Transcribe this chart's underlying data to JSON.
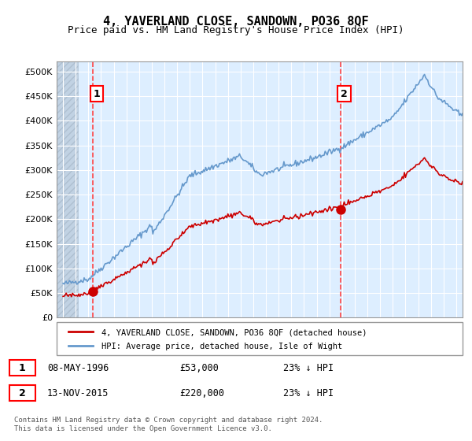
{
  "title": "4, YAVERLAND CLOSE, SANDOWN, PO36 8QF",
  "subtitle": "Price paid vs. HM Land Registry's House Price Index (HPI)",
  "sale1_date": 1996.36,
  "sale1_price": 53000,
  "sale2_date": 2015.87,
  "sale2_price": 220000,
  "hpi_color": "#6699cc",
  "price_color": "#cc0000",
  "dashed_color": "#ff4444",
  "bg_plot": "#ddeeff",
  "bg_hatch": "#ccddee",
  "ylim": [
    0,
    520000
  ],
  "xlim_left": 1993.5,
  "xlim_right": 2025.5,
  "legend_line1": "4, YAVERLAND CLOSE, SANDOWN, PO36 8QF (detached house)",
  "legend_line2": "HPI: Average price, detached house, Isle of Wight",
  "table_row1": "1    08-MAY-1996         £53,000        23% ↓ HPI",
  "table_row2": "2    13-NOV-2015         £220,000      23% ↓ HPI",
  "footnote": "Contains HM Land Registry data © Crown copyright and database right 2024.\nThis data is licensed under the Open Government Licence v3.0.",
  "ytick_labels": [
    "£0",
    "£50K",
    "£100K",
    "£150K",
    "£200K",
    "£250K",
    "£300K",
    "£350K",
    "£400K",
    "£450K",
    "£500K"
  ],
  "ytick_values": [
    0,
    50000,
    100000,
    150000,
    200000,
    250000,
    300000,
    350000,
    400000,
    450000,
    500000
  ]
}
